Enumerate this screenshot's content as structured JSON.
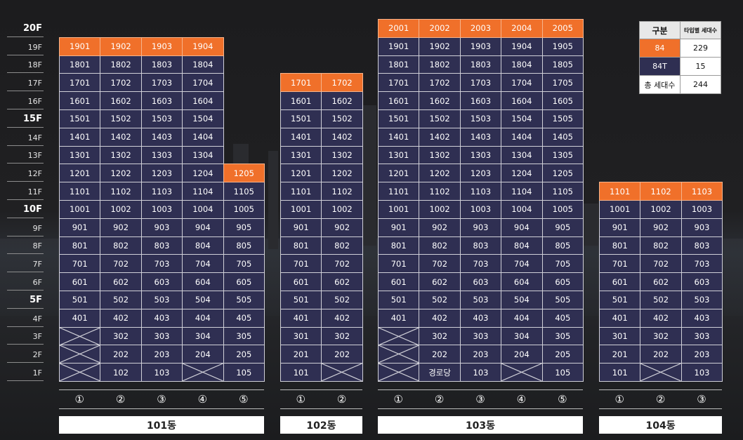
{
  "floors": [
    "20F",
    "19F",
    "18F",
    "17F",
    "16F",
    "15F",
    "14F",
    "13F",
    "12F",
    "11F",
    "10F",
    "9F",
    "8F",
    "7F",
    "6F",
    "5F",
    "4F",
    "3F",
    "2F",
    "1F"
  ],
  "major_floors": [
    "20F",
    "15F",
    "10F",
    "5F"
  ],
  "colors": {
    "unit_bg": "#2f2f52",
    "highlight": "#f0702a",
    "grid_line": "#d0d0d8",
    "background": "#1e1e20"
  },
  "buildings": [
    {
      "name": "101동",
      "lines": [
        "①",
        "②",
        "③",
        "④",
        "⑤"
      ],
      "columns": [
        {
          "top": 19,
          "first_occupied": 4,
          "special": {}
        },
        {
          "top": 19,
          "first_occupied": 1,
          "special": {}
        },
        {
          "top": 19,
          "first_occupied": 1,
          "special": {}
        },
        {
          "top": 19,
          "first_occupied": 2,
          "special": {}
        },
        {
          "top": 12,
          "first_occupied": 1,
          "special": {}
        }
      ],
      "highlight_floor_per_column": [
        19,
        19,
        19,
        19,
        12
      ]
    },
    {
      "name": "102동",
      "lines": [
        "①",
        "②"
      ],
      "columns": [
        {
          "top": 17,
          "first_occupied": 1,
          "special": {}
        },
        {
          "top": 17,
          "first_occupied": 2,
          "special": {}
        }
      ],
      "highlight_floor_per_column": [
        17,
        17
      ]
    },
    {
      "name": "103동",
      "lines": [
        "①",
        "②",
        "③",
        "④",
        "⑤"
      ],
      "columns": [
        {
          "top": 20,
          "first_occupied": 4,
          "special": {}
        },
        {
          "top": 20,
          "first_occupied": 1,
          "special": {
            "1": "경로당"
          }
        },
        {
          "top": 20,
          "first_occupied": 1,
          "special": {}
        },
        {
          "top": 20,
          "first_occupied": 2,
          "special": {}
        },
        {
          "top": 20,
          "first_occupied": 1,
          "special": {}
        }
      ],
      "highlight_floor_per_column": [
        20,
        20,
        20,
        20,
        20
      ]
    },
    {
      "name": "104동",
      "lines": [
        "①",
        "②",
        "③"
      ],
      "columns": [
        {
          "top": 11,
          "first_occupied": 1,
          "special": {}
        },
        {
          "top": 11,
          "first_occupied": 2,
          "special": {}
        },
        {
          "top": 11,
          "first_occupied": 1,
          "special": {}
        }
      ],
      "highlight_floor_per_column": [
        11,
        11,
        11
      ]
    }
  ],
  "legend": {
    "header": [
      "구분",
      "타입별 세대수"
    ],
    "rows": [
      {
        "type": "84",
        "count": "229",
        "highlight": true
      },
      {
        "type": "84T",
        "count": "15",
        "highlight": false
      },
      {
        "type": "총 세대수",
        "count": "244",
        "highlight": false
      }
    ]
  }
}
